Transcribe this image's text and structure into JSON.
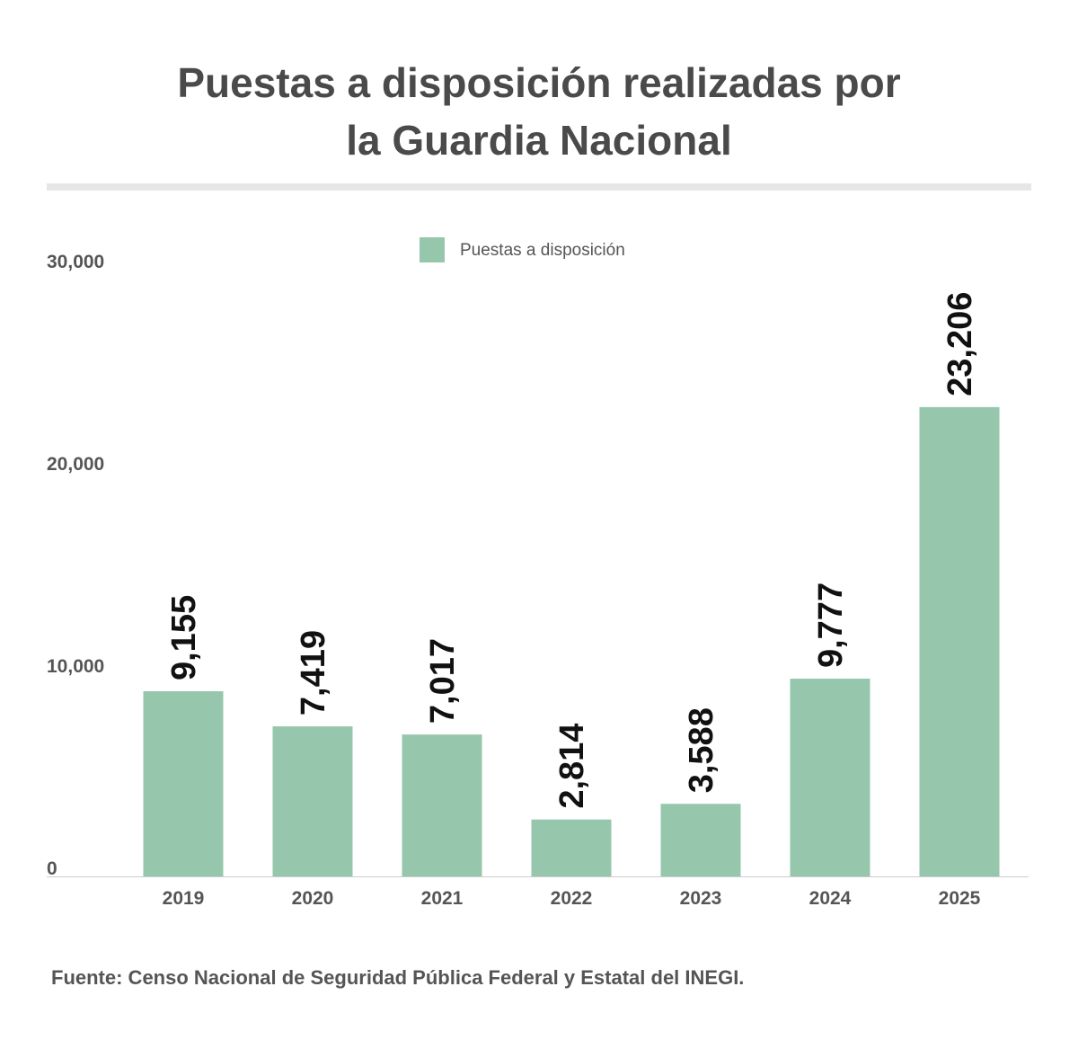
{
  "header": {
    "title_line1": "Puestas a disposición realizadas por",
    "title_line2": "la Guardia Nacional"
  },
  "footer": {
    "source": "Fuente: Censo Nacional de Seguridad Pública Federal y Estatal del INEGI."
  },
  "colors": {
    "bar": "#96c7ad",
    "title": "#4a4a4a",
    "axis_text": "#555555",
    "data_label": "#111111",
    "axis_line": "#cccccc"
  },
  "chart_data": {
    "type": "bar",
    "title": "Puestas a disposición realizadas por la Guardia Nacional",
    "xlabel": "",
    "ylabel": "",
    "categories": [
      "2019",
      "2020",
      "2021",
      "2022",
      "2023",
      "2024",
      "2025"
    ],
    "series": [
      {
        "name": "Puestas a disposición",
        "values": [
          9155,
          7419,
          7017,
          2814,
          3588,
          9777,
          23206
        ],
        "labels": [
          "9,155",
          "7,419",
          "7,017",
          "2,814",
          "3,588",
          "9,777",
          "23,206"
        ]
      }
    ],
    "ylim": [
      0,
      30000
    ],
    "yticks": [
      0,
      10000,
      20000,
      30000
    ],
    "ytick_labels": [
      "0",
      "10,000",
      "20,000",
      "30,000"
    ],
    "grid": false,
    "legend": "top-center"
  }
}
